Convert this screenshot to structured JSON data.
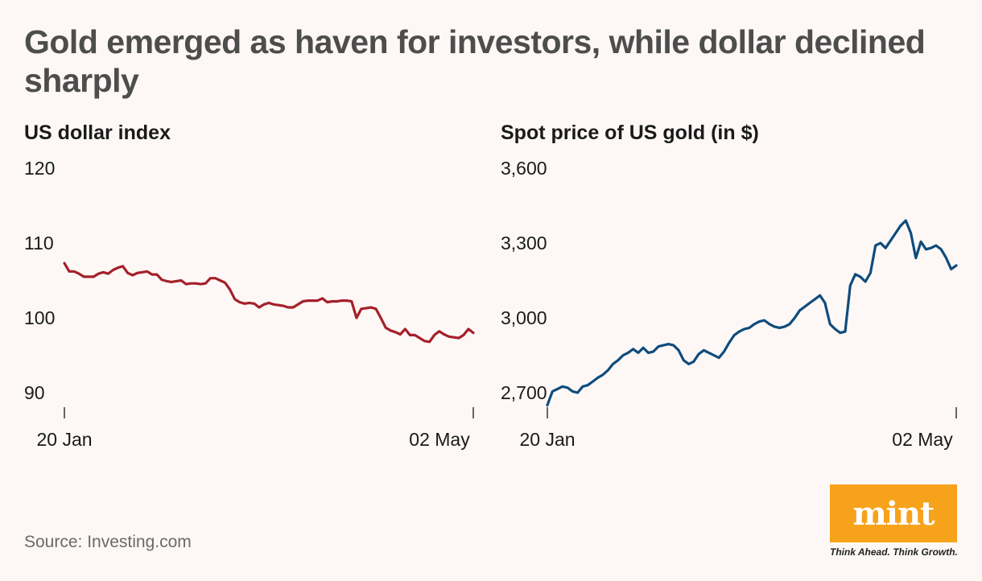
{
  "title": "Gold emerged as haven for investors, while dollar declined sharply",
  "source": "Source: Investing.com",
  "logo": {
    "text": "mint",
    "tagline": "Think Ahead. Think Growth.",
    "color": "#f7a21b"
  },
  "chart_data": [
    {
      "type": "line",
      "title": "US dollar index",
      "xlabel": "",
      "ylabel": "",
      "ylim": [
        90,
        120
      ],
      "yticks": [
        90,
        100,
        110,
        120
      ],
      "ytick_labels": [
        "90",
        "100",
        "110",
        "120"
      ],
      "x_labels": [
        "20 Jan",
        "02 May"
      ],
      "color": "#a5202a",
      "values": [
        107.3,
        106.2,
        106.2,
        105.9,
        105.5,
        105.5,
        105.5,
        105.9,
        106.1,
        105.9,
        106.4,
        106.7,
        106.9,
        106.0,
        105.7,
        106.0,
        106.1,
        106.2,
        105.8,
        105.8,
        105.1,
        104.9,
        104.8,
        104.9,
        105.0,
        104.5,
        104.6,
        104.6,
        104.5,
        104.6,
        105.3,
        105.3,
        105.0,
        104.7,
        103.8,
        102.5,
        102.1,
        101.9,
        102.0,
        101.9,
        101.4,
        101.8,
        102.0,
        101.8,
        101.7,
        101.6,
        101.4,
        101.4,
        101.8,
        102.2,
        102.3,
        102.3,
        102.3,
        102.6,
        102.1,
        102.2,
        102.2,
        102.3,
        102.3,
        102.2,
        100.0,
        101.2,
        101.3,
        101.4,
        101.2,
        100.0,
        98.7,
        98.3,
        98.1,
        97.8,
        98.5,
        97.7,
        97.7,
        97.3,
        96.9,
        96.8,
        97.7,
        98.2,
        97.8,
        97.5,
        97.4,
        97.3,
        97.7,
        98.5,
        98.0
      ]
    },
    {
      "type": "line",
      "title": "Spot price of US gold (in $)",
      "xlabel": "",
      "ylabel": "",
      "ylim": [
        2700,
        3600
      ],
      "yticks": [
        2700,
        3000,
        3300,
        3600
      ],
      "ytick_labels": [
        "2,700",
        "3,000",
        "3,300",
        "3,600"
      ],
      "x_labels": [
        "20 Jan",
        "02 May"
      ],
      "color": "#0f4c7d",
      "values": [
        2650,
        2705,
        2715,
        2725,
        2720,
        2705,
        2700,
        2725,
        2730,
        2745,
        2760,
        2772,
        2790,
        2815,
        2830,
        2850,
        2860,
        2875,
        2860,
        2880,
        2860,
        2865,
        2885,
        2890,
        2895,
        2890,
        2870,
        2830,
        2815,
        2825,
        2855,
        2870,
        2860,
        2850,
        2840,
        2865,
        2900,
        2930,
        2945,
        2955,
        2960,
        2975,
        2985,
        2990,
        2975,
        2965,
        2960,
        2965,
        2975,
        3000,
        3030,
        3045,
        3060,
        3075,
        3090,
        3060,
        2975,
        2955,
        2940,
        2945,
        3130,
        3175,
        3165,
        3145,
        3180,
        3290,
        3300,
        3280,
        3310,
        3340,
        3370,
        3390,
        3340,
        3240,
        3305,
        3275,
        3280,
        3290,
        3275,
        3240,
        3195,
        3210
      ]
    }
  ]
}
